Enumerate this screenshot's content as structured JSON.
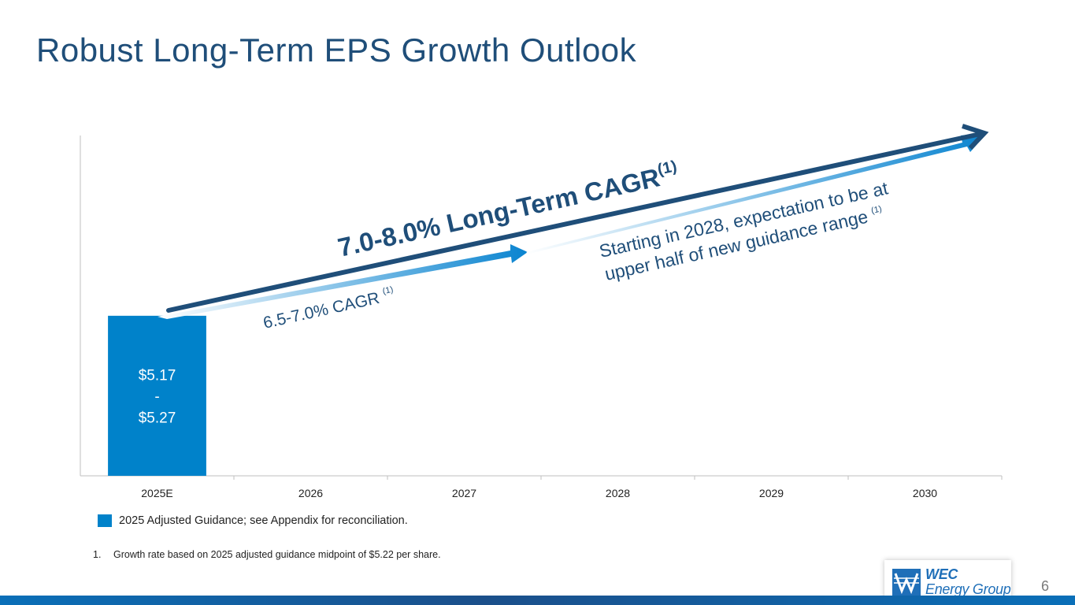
{
  "title": "Robust Long-Term EPS Growth Outlook",
  "colors": {
    "title": "#1f4e79",
    "bar": "#0082ca",
    "arrow_dark": "#1f4e79",
    "arrow_light": "#0a84d0",
    "axis": "#bfbfbf"
  },
  "chart_data": {
    "type": "bar",
    "categories": [
      "2025E",
      "2026",
      "2027",
      "2028",
      "2029",
      "2030"
    ],
    "series": [
      {
        "name": "2025 Adjusted Guidance; see Appendix for reconciliation.",
        "values": [
          5.22,
          null,
          null,
          null,
          null,
          null
        ],
        "label_lines": [
          "$5.17",
          "-",
          "$5.27"
        ]
      }
    ],
    "ylim": [
      0,
      11.1
    ],
    "grid": false,
    "legend_position": "bottom-left",
    "annotations": {
      "long_term_main": "7.0-8.0% Long-Term CAGR",
      "long_term_sup": "(1)",
      "near_term_main": "6.5-7.0% CAGR",
      "near_term_sup": "(1)",
      "outlook_line1": "Starting in 2028, expectation to be at",
      "outlook_line2": "upper half of new guidance range",
      "outlook_sup": "(1)"
    }
  },
  "legend": {
    "label": "2025 Adjusted Guidance; see Appendix for reconciliation."
  },
  "footnote": {
    "number": "1.",
    "text": "Growth rate based on 2025 adjusted guidance midpoint of $5.22 per share."
  },
  "logo": {
    "line1": "WEC",
    "line2": "Energy Group",
    "icon": "wec-logo-icon"
  },
  "page_number": "6"
}
